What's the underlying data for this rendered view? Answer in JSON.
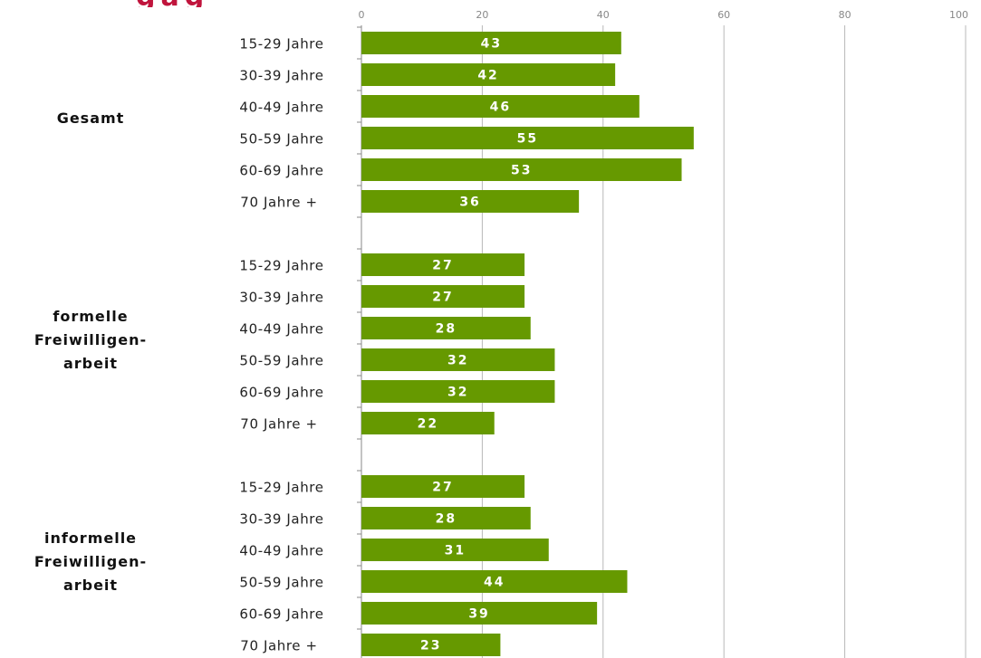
{
  "chart_data": {
    "type": "bar",
    "orientation": "horizontal",
    "title_fragment": "gag",
    "xlim": [
      0,
      100
    ],
    "ticks": [
      0,
      20,
      40,
      60,
      80,
      100
    ],
    "grid": true,
    "bar_color": "#669900",
    "groups": [
      {
        "label": [
          "Gesamt"
        ],
        "categories": [
          "15-29 Jahre",
          "30-39 Jahre",
          "40-49 Jahre",
          "50-59 Jahre",
          "60-69 Jahre",
          "70 Jahre +"
        ],
        "values": [
          43,
          42,
          46,
          55,
          53,
          36
        ]
      },
      {
        "label": [
          "formelle",
          "Freiwilligen-",
          "arbeit"
        ],
        "categories": [
          "15-29 Jahre",
          "30-39 Jahre",
          "40-49 Jahre",
          "50-59 Jahre",
          "60-69 Jahre",
          "70 Jahre +"
        ],
        "values": [
          27,
          27,
          28,
          32,
          32,
          22
        ]
      },
      {
        "label": [
          "informelle",
          "Freiwilligen-",
          "arbeit"
        ],
        "categories": [
          "15-29 Jahre",
          "30-39 Jahre",
          "40-49 Jahre",
          "50-59 Jahre",
          "60-69 Jahre",
          "70 Jahre +"
        ],
        "values": [
          27,
          28,
          31,
          44,
          39,
          23
        ]
      }
    ]
  }
}
